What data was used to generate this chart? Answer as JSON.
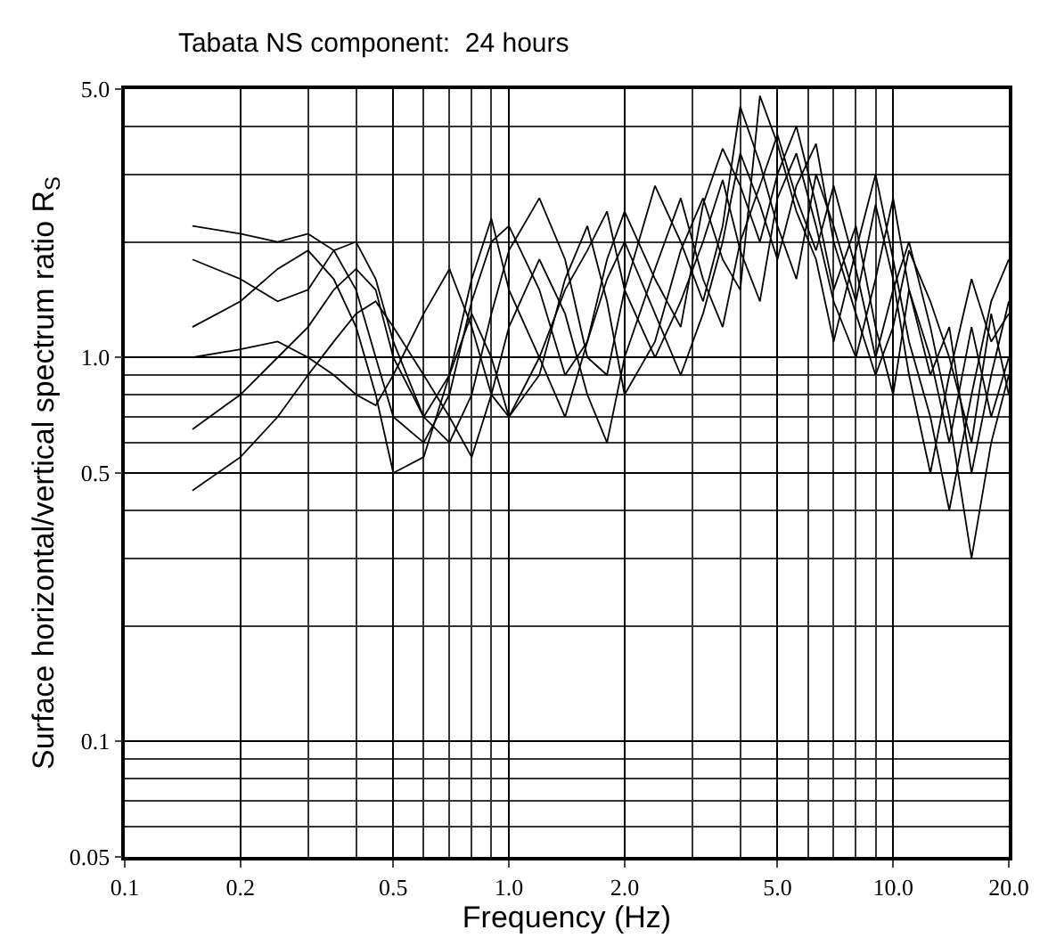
{
  "chart_data": {
    "type": "line",
    "title": "Tabata NS component:  24 hours",
    "xlabel": "Frequency (Hz)",
    "ylabel": "Surface horizontal/vertical spectrum ratio R$_{S}$",
    "x": [
      0.15,
      0.2,
      0.25,
      0.3,
      0.35,
      0.4,
      0.45,
      0.5,
      0.6,
      0.7,
      0.8,
      0.9,
      1.0,
      1.2,
      1.4,
      1.6,
      1.8,
      2.0,
      2.4,
      2.8,
      3.2,
      3.6,
      4.0,
      4.5,
      5.0,
      5.6,
      6.3,
      7,
      8,
      9,
      10,
      11,
      12.5,
      14,
      16,
      18,
      20
    ],
    "series": [
      {
        "color": "#000000",
        "values": [
          2.2,
          2.1,
          2.0,
          2.1,
          1.9,
          1.5,
          1.0,
          0.7,
          0.6,
          0.8,
          1.4,
          2.0,
          2.2,
          1.5,
          0.9,
          1.1,
          1.8,
          2.4,
          1.6,
          1.2,
          2.5,
          3.5,
          2.8,
          2.0,
          3.0,
          4.0,
          2.5,
          1.5,
          2.2,
          1.2,
          0.8,
          1.5,
          1.0,
          0.6,
          1.2,
          0.7,
          1.0
        ]
      },
      {
        "color": "#000000",
        "values": [
          1.8,
          1.6,
          1.4,
          1.5,
          1.9,
          2.0,
          1.6,
          1.1,
          0.7,
          0.6,
          0.8,
          1.3,
          1.9,
          2.6,
          1.8,
          1.0,
          0.9,
          1.5,
          2.8,
          2.0,
          1.4,
          2.2,
          4.5,
          3.2,
          2.2,
          1.6,
          3.0,
          2.2,
          1.4,
          2.5,
          1.6,
          0.9,
          0.5,
          0.9,
          1.6,
          1.1,
          1.3
        ]
      },
      {
        "color": "#000000",
        "values": [
          1.2,
          1.4,
          1.7,
          1.9,
          1.6,
          1.2,
          0.8,
          0.5,
          0.55,
          0.9,
          1.3,
          1.0,
          0.7,
          0.9,
          1.6,
          2.2,
          1.4,
          0.8,
          1.1,
          1.9,
          2.6,
          1.8,
          1.5,
          4.8,
          3.6,
          2.4,
          1.8,
          1.1,
          1.9,
          3.0,
          1.8,
          1.1,
          0.7,
          0.4,
          0.8,
          1.4,
          1.8
        ]
      },
      {
        "color": "#000000",
        "values": [
          0.45,
          0.55,
          0.7,
          0.9,
          1.1,
          1.3,
          1.4,
          1.2,
          0.9,
          0.7,
          0.55,
          0.8,
          1.2,
          1.8,
          1.3,
          0.8,
          0.6,
          1.0,
          1.7,
          2.6,
          1.6,
          1.2,
          2.0,
          2.8,
          3.8,
          2.6,
          1.9,
          2.8,
          1.7,
          1.0,
          1.5,
          2.0,
          1.2,
          0.7,
          0.3,
          0.6,
          0.9
        ]
      },
      {
        "color": "#000000",
        "values": [
          1.0,
          1.05,
          1.1,
          1.0,
          0.9,
          0.8,
          0.75,
          0.9,
          1.3,
          1.7,
          1.2,
          0.8,
          0.7,
          1.0,
          1.5,
          1.9,
          2.4,
          1.5,
          1.0,
          1.4,
          2.0,
          2.9,
          1.9,
          1.4,
          2.6,
          3.4,
          2.2,
          1.4,
          1.0,
          1.6,
          2.6,
          1.5,
          0.9,
          1.2,
          0.5,
          0.9,
          1.4
        ]
      },
      {
        "color": "#000000",
        "values": [
          0.65,
          0.8,
          1.0,
          1.2,
          1.5,
          1.7,
          1.5,
          1.0,
          0.7,
          0.9,
          1.6,
          2.3,
          1.5,
          1.0,
          0.7,
          1.1,
          1.6,
          2.0,
          1.3,
          0.9,
          1.3,
          2.0,
          3.4,
          2.5,
          1.8,
          2.8,
          3.6,
          2.0,
          1.3,
          0.9,
          1.2,
          1.9,
          1.4,
          1.0,
          0.6,
          1.3,
          0.8
        ]
      }
    ],
    "xlim": [
      0.1,
      20
    ],
    "ylim": [
      0.05,
      5
    ],
    "xticks": [
      0.1,
      0.2,
      0.5,
      {
        "value": 1,
        "label": "1.0"
      },
      {
        "value": 2,
        "label": "2.0"
      },
      {
        "value": 5,
        "label": "5.0"
      },
      {
        "value": 10,
        "label": "10.0"
      },
      {
        "value": 20,
        "label": "20.0"
      }
    ],
    "yticks": [
      0.05,
      0.1,
      0.5,
      {
        "value": 1,
        "label": "1.0"
      },
      {
        "value": 5,
        "label": "5.0"
      }
    ],
    "log": "xy",
    "grid": true,
    "marker": "none",
    "line_style": "solid"
  }
}
